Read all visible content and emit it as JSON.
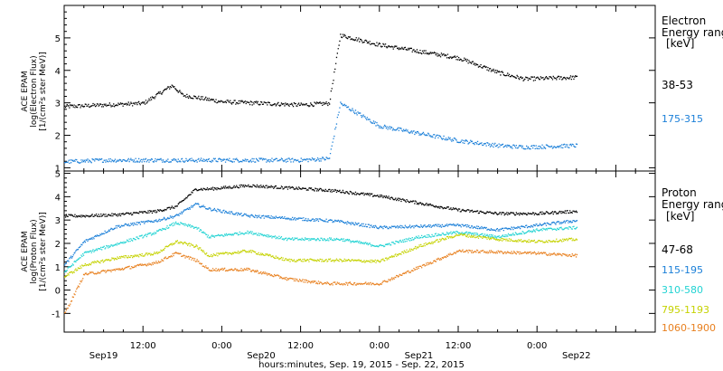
{
  "chart_data": [
    {
      "type": "scatter",
      "panel": "electron",
      "ylabel_lines": [
        "ACE EPAM",
        "log(Electron Flux)",
        "[1/(cm²s ster MeV)]"
      ],
      "ylim": [
        0.9,
        6.0
      ],
      "yticks": [
        "1",
        "2",
        "3",
        "4",
        "5"
      ],
      "legend_title": [
        "Electron",
        "Energy range",
        "[keV]"
      ],
      "grid": false,
      "x_hours": [
        0,
        6,
        12,
        16.4,
        18,
        24,
        36,
        40.3,
        42,
        48,
        60,
        66,
        70,
        78
      ],
      "series": [
        {
          "name": "38-53",
          "color": "#000000",
          "y": [
            2.9,
            2.95,
            3.0,
            3.55,
            3.25,
            3.05,
            2.95,
            3.0,
            5.1,
            4.8,
            4.4,
            3.95,
            3.75,
            3.8
          ]
        },
        {
          "name": "175-315",
          "color": "#1a7fd8",
          "y": [
            1.2,
            1.25,
            1.25,
            1.25,
            1.25,
            1.25,
            1.25,
            1.3,
            3.0,
            2.3,
            1.85,
            1.7,
            1.65,
            1.7
          ]
        }
      ]
    },
    {
      "type": "scatter",
      "panel": "proton",
      "ylabel_lines": [
        "ACE EPAM",
        "log(Proton Flux)",
        "[1/(cm²s ster MeV)]"
      ],
      "ylim": [
        -1.8,
        5.1
      ],
      "yticks": [
        "-1",
        "0",
        "1",
        "2",
        "3",
        "4",
        "5"
      ],
      "legend_title": [
        "Proton",
        "Energy range",
        "[keV]"
      ],
      "grid": false,
      "x_hours": [
        0,
        3,
        8,
        14,
        17,
        20,
        22,
        28,
        34,
        40,
        42,
        48,
        54,
        60,
        66,
        72,
        78
      ],
      "series": [
        {
          "name": "47-68",
          "color": "#000000",
          "y": [
            3.2,
            3.2,
            3.25,
            3.4,
            3.6,
            4.35,
            4.35,
            4.5,
            4.4,
            4.3,
            4.25,
            4.05,
            3.75,
            3.45,
            3.3,
            3.3,
            3.4
          ]
        },
        {
          "name": "115-195",
          "color": "#1a7fd8",
          "y": [
            1.1,
            2.1,
            2.75,
            3.0,
            3.2,
            3.7,
            3.5,
            3.2,
            3.1,
            3.0,
            2.95,
            2.7,
            2.75,
            2.8,
            2.6,
            2.8,
            3.0
          ]
        },
        {
          "name": "310-580",
          "color": "#22d3d3",
          "y": [
            0.8,
            1.6,
            2.0,
            2.5,
            2.9,
            2.7,
            2.3,
            2.5,
            2.2,
            2.2,
            2.2,
            1.9,
            2.3,
            2.5,
            2.3,
            2.6,
            2.7
          ]
        },
        {
          "name": "795-1193",
          "color": "#c5d200",
          "y": [
            0.6,
            1.1,
            1.4,
            1.6,
            2.1,
            1.9,
            1.5,
            1.7,
            1.3,
            1.3,
            1.3,
            1.25,
            1.9,
            2.4,
            2.2,
            2.1,
            2.2
          ]
        },
        {
          "name": "1060-1900",
          "color": "#e8801f",
          "y": [
            -1.0,
            0.7,
            0.9,
            1.2,
            1.6,
            1.3,
            0.9,
            0.9,
            0.5,
            0.3,
            0.3,
            0.3,
            1.0,
            1.7,
            1.65,
            1.6,
            1.5
          ]
        }
      ]
    }
  ],
  "x_axis": {
    "tick_labels": [
      "12:00",
      "0:00",
      "12:00",
      "0:00",
      "12:00",
      "0:00"
    ],
    "date_labels": [
      "Sep19",
      "Sep20",
      "Sep21",
      "Sep22"
    ],
    "label": "hours:minutes, Sep. 19, 2015 - Sep. 22, 2015",
    "range_hours": [
      0,
      90
    ]
  }
}
